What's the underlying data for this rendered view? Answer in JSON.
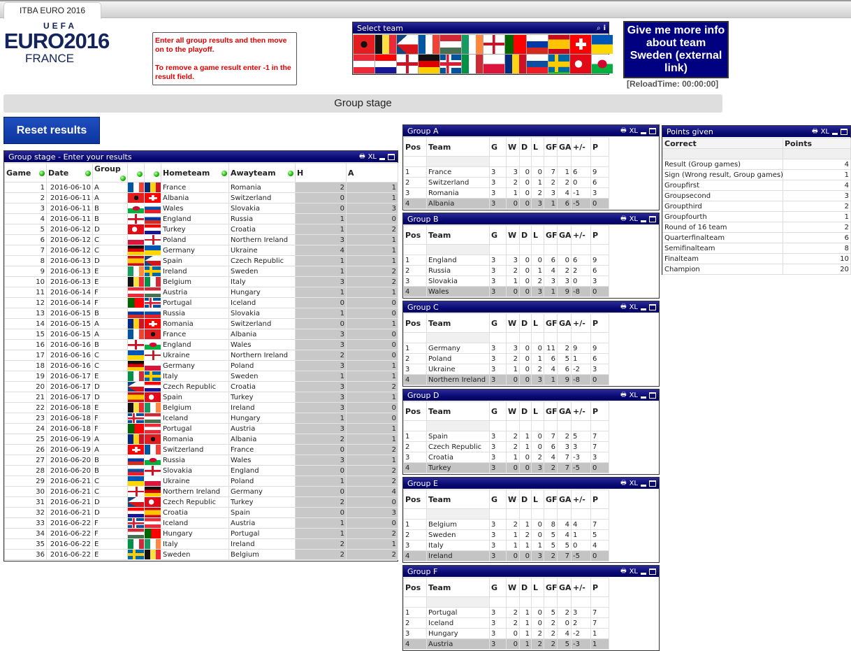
{
  "tab": {
    "title": "ITBA EURO 2016"
  },
  "logo": {
    "line1": "UEFA",
    "line2": "EURO2016",
    "line3": "FRANCE"
  },
  "info": {
    "line1": "Enter all group results and then move on to the playoff.",
    "line2": "To remove a game result enter -1 in the result field."
  },
  "select_team": {
    "title": "Select team",
    "search_icon": "search-icon",
    "info_icon": "info-icon",
    "selected": "Sweden",
    "flags": [
      "Albania",
      "Belgium",
      "Czech Republic",
      "France",
      "Hungary",
      "Ireland",
      "Northern Ireland",
      "Portugal",
      "Russia",
      "Spain",
      "Switzerland",
      "Ukraine",
      "Austria",
      "Croatia",
      "England",
      "Germany",
      "Iceland",
      "Italy",
      "Poland",
      "Romania",
      "Slovakia",
      "Sweden",
      "Turkey",
      "Wales"
    ]
  },
  "more_button": {
    "label": "Give me more info about team Sweden (external link)"
  },
  "reload": "[ReloadTime: 00:00:00]",
  "group_stage_title": "Group stage",
  "reset_button": "Reset results",
  "panel_icons": {
    "xl": "XL"
  },
  "results": {
    "title": "Group stage - Enter your results",
    "headers": [
      "Game",
      "Date",
      "Group",
      "",
      "",
      "Hometeam",
      "Awayteam",
      "H",
      "A"
    ],
    "rows": [
      [
        1,
        "2016-06-10",
        "A",
        "France",
        "Romania",
        2,
        1
      ],
      [
        2,
        "2016-06-11",
        "A",
        "Albania",
        "Switzerland",
        0,
        1
      ],
      [
        3,
        "2016-06-11",
        "B",
        "Wales",
        "Slovakia",
        0,
        3
      ],
      [
        4,
        "2016-06-11",
        "B",
        "England",
        "Russia",
        1,
        0
      ],
      [
        5,
        "2016-06-12",
        "D",
        "Turkey",
        "Croatia",
        1,
        2
      ],
      [
        6,
        "2016-06-12",
        "C",
        "Poland",
        "Northern Ireland",
        3,
        1
      ],
      [
        7,
        "2016-06-12",
        "C",
        "Germany",
        "Ukraine",
        4,
        1
      ],
      [
        8,
        "2016-06-13",
        "D",
        "Spain",
        "Czech Republic",
        1,
        1
      ],
      [
        9,
        "2016-06-13",
        "E",
        "Ireland",
        "Sweden",
        1,
        2
      ],
      [
        10,
        "2016-06-13",
        "E",
        "Belgium",
        "Italy",
        3,
        2
      ],
      [
        11,
        "2016-06-14",
        "F",
        "Austria",
        "Hungary",
        1,
        1
      ],
      [
        12,
        "2016-06-14",
        "F",
        "Portugal",
        "Iceland",
        0,
        0
      ],
      [
        13,
        "2016-06-15",
        "B",
        "Russia",
        "Slovakia",
        1,
        0
      ],
      [
        14,
        "2016-06-15",
        "A",
        "Romania",
        "Switzerland",
        0,
        1
      ],
      [
        15,
        "2016-06-15",
        "A",
        "France",
        "Albania",
        3,
        0
      ],
      [
        16,
        "2016-06-16",
        "B",
        "England",
        "Wales",
        3,
        0
      ],
      [
        17,
        "2016-06-16",
        "C",
        "Ukraine",
        "Northern Ireland",
        2,
        0
      ],
      [
        18,
        "2016-06-16",
        "C",
        "Germany",
        "Poland",
        3,
        1
      ],
      [
        19,
        "2016-06-17",
        "E",
        "Italy",
        "Sweden",
        1,
        1
      ],
      [
        20,
        "2016-06-17",
        "D",
        "Czech Republic",
        "Croatia",
        3,
        2
      ],
      [
        21,
        "2016-06-17",
        "D",
        "Spain",
        "Turkey",
        3,
        1
      ],
      [
        22,
        "2016-06-18",
        "E",
        "Belgium",
        "Ireland",
        3,
        0
      ],
      [
        23,
        "2016-06-18",
        "F",
        "Iceland",
        "Hungary",
        1,
        0
      ],
      [
        24,
        "2016-06-18",
        "F",
        "Portugal",
        "Austria",
        3,
        1
      ],
      [
        25,
        "2016-06-19",
        "A",
        "Romania",
        "Albania",
        2,
        1
      ],
      [
        26,
        "2016-06-19",
        "A",
        "Switzerland",
        "France",
        0,
        2
      ],
      [
        27,
        "2016-06-20",
        "B",
        "Russia",
        "Wales",
        3,
        1
      ],
      [
        28,
        "2016-06-20",
        "B",
        "Slovakia",
        "England",
        0,
        2
      ],
      [
        29,
        "2016-06-21",
        "C",
        "Ukraine",
        "Poland",
        1,
        2
      ],
      [
        30,
        "2016-06-21",
        "C",
        "Northern Ireland",
        "Germany",
        0,
        4
      ],
      [
        31,
        "2016-06-21",
        "D",
        "Czech Republic",
        "Turkey",
        2,
        0
      ],
      [
        32,
        "2016-06-21",
        "D",
        "Croatia",
        "Spain",
        0,
        3
      ],
      [
        33,
        "2016-06-22",
        "F",
        "Iceland",
        "Austria",
        1,
        0
      ],
      [
        34,
        "2016-06-22",
        "F",
        "Hungary",
        "Portugal",
        1,
        2
      ],
      [
        35,
        "2016-06-22",
        "E",
        "Italy",
        "Ireland",
        2,
        1
      ],
      [
        36,
        "2016-06-22",
        "E",
        "Sweden",
        "Belgium",
        2,
        2
      ]
    ]
  },
  "group_headers": [
    "Pos",
    "Team",
    "G",
    "W",
    "D",
    "L",
    "GF",
    "GA",
    "+/-",
    "P"
  ],
  "groups": [
    {
      "title": "Group A",
      "rows": [
        [
          1,
          "France",
          3,
          3,
          0,
          0,
          7,
          1,
          "6",
          9
        ],
        [
          2,
          "Switzerland",
          3,
          2,
          0,
          1,
          2,
          2,
          "0",
          6
        ],
        [
          3,
          "Romania",
          3,
          1,
          0,
          2,
          3,
          4,
          "-1",
          3
        ],
        [
          4,
          "Albania",
          3,
          0,
          0,
          3,
          1,
          6,
          "-5",
          0
        ]
      ]
    },
    {
      "title": "Group B",
      "rows": [
        [
          1,
          "England",
          3,
          3,
          0,
          0,
          6,
          0,
          "6",
          9
        ],
        [
          2,
          "Russia",
          3,
          2,
          0,
          1,
          4,
          2,
          "2",
          6
        ],
        [
          3,
          "Slovakia",
          3,
          1,
          0,
          2,
          3,
          3,
          "0",
          3
        ],
        [
          4,
          "Wales",
          3,
          0,
          0,
          3,
          1,
          9,
          "-8",
          0
        ]
      ]
    },
    {
      "title": "Group C",
      "rows": [
        [
          1,
          "Germany",
          3,
          3,
          0,
          0,
          11,
          2,
          "9",
          9
        ],
        [
          2,
          "Poland",
          3,
          2,
          0,
          1,
          6,
          5,
          "1",
          6
        ],
        [
          3,
          "Ukraine",
          3,
          1,
          0,
          2,
          4,
          6,
          "-2",
          3
        ],
        [
          4,
          "Northern Ireland",
          3,
          0,
          0,
          3,
          1,
          9,
          "-8",
          0
        ]
      ]
    },
    {
      "title": "Group D",
      "rows": [
        [
          1,
          "Spain",
          3,
          2,
          1,
          0,
          7,
          2,
          "5",
          7
        ],
        [
          2,
          "Czech Republic",
          3,
          2,
          1,
          0,
          6,
          3,
          "3",
          7
        ],
        [
          3,
          "Croatia",
          3,
          1,
          0,
          2,
          4,
          7,
          "-3",
          3
        ],
        [
          4,
          "Turkey",
          3,
          0,
          0,
          3,
          2,
          7,
          "-5",
          0
        ]
      ]
    },
    {
      "title": "Group E",
      "rows": [
        [
          1,
          "Belgium",
          3,
          2,
          1,
          0,
          8,
          4,
          "4",
          7
        ],
        [
          2,
          "Sweden",
          3,
          1,
          2,
          0,
          5,
          4,
          "1",
          5
        ],
        [
          3,
          "Italy",
          3,
          1,
          1,
          1,
          5,
          5,
          "0",
          4
        ],
        [
          4,
          "Ireland",
          3,
          0,
          0,
          3,
          2,
          7,
          "-5",
          0
        ]
      ]
    },
    {
      "title": "Group F",
      "rows": [
        [
          1,
          "Portugal",
          3,
          2,
          1,
          0,
          5,
          2,
          "3",
          7
        ],
        [
          2,
          "Iceland",
          3,
          2,
          1,
          0,
          2,
          0,
          "2",
          7
        ],
        [
          3,
          "Hungary",
          3,
          0,
          1,
          2,
          2,
          4,
          "-2",
          1
        ],
        [
          4,
          "Austria",
          3,
          0,
          1,
          2,
          2,
          5,
          "-3",
          1
        ]
      ]
    }
  ],
  "points": {
    "title": "Points given",
    "headers": [
      "Correct",
      "Points"
    ],
    "rows": [
      [
        "Result (Group games)",
        4
      ],
      [
        "Sign (Wrong result, Group games)",
        1
      ],
      [
        "Groupfirst",
        4
      ],
      [
        "Groupsecond",
        3
      ],
      [
        "Groupthird",
        2
      ],
      [
        "Groupfourth",
        1
      ],
      [
        "Round of 16 team",
        2
      ],
      [
        "Quarterfinalteam",
        6
      ],
      [
        "Semifinalteam",
        8
      ],
      [
        "Finalteam",
        10
      ],
      [
        "Champion",
        20
      ]
    ]
  }
}
